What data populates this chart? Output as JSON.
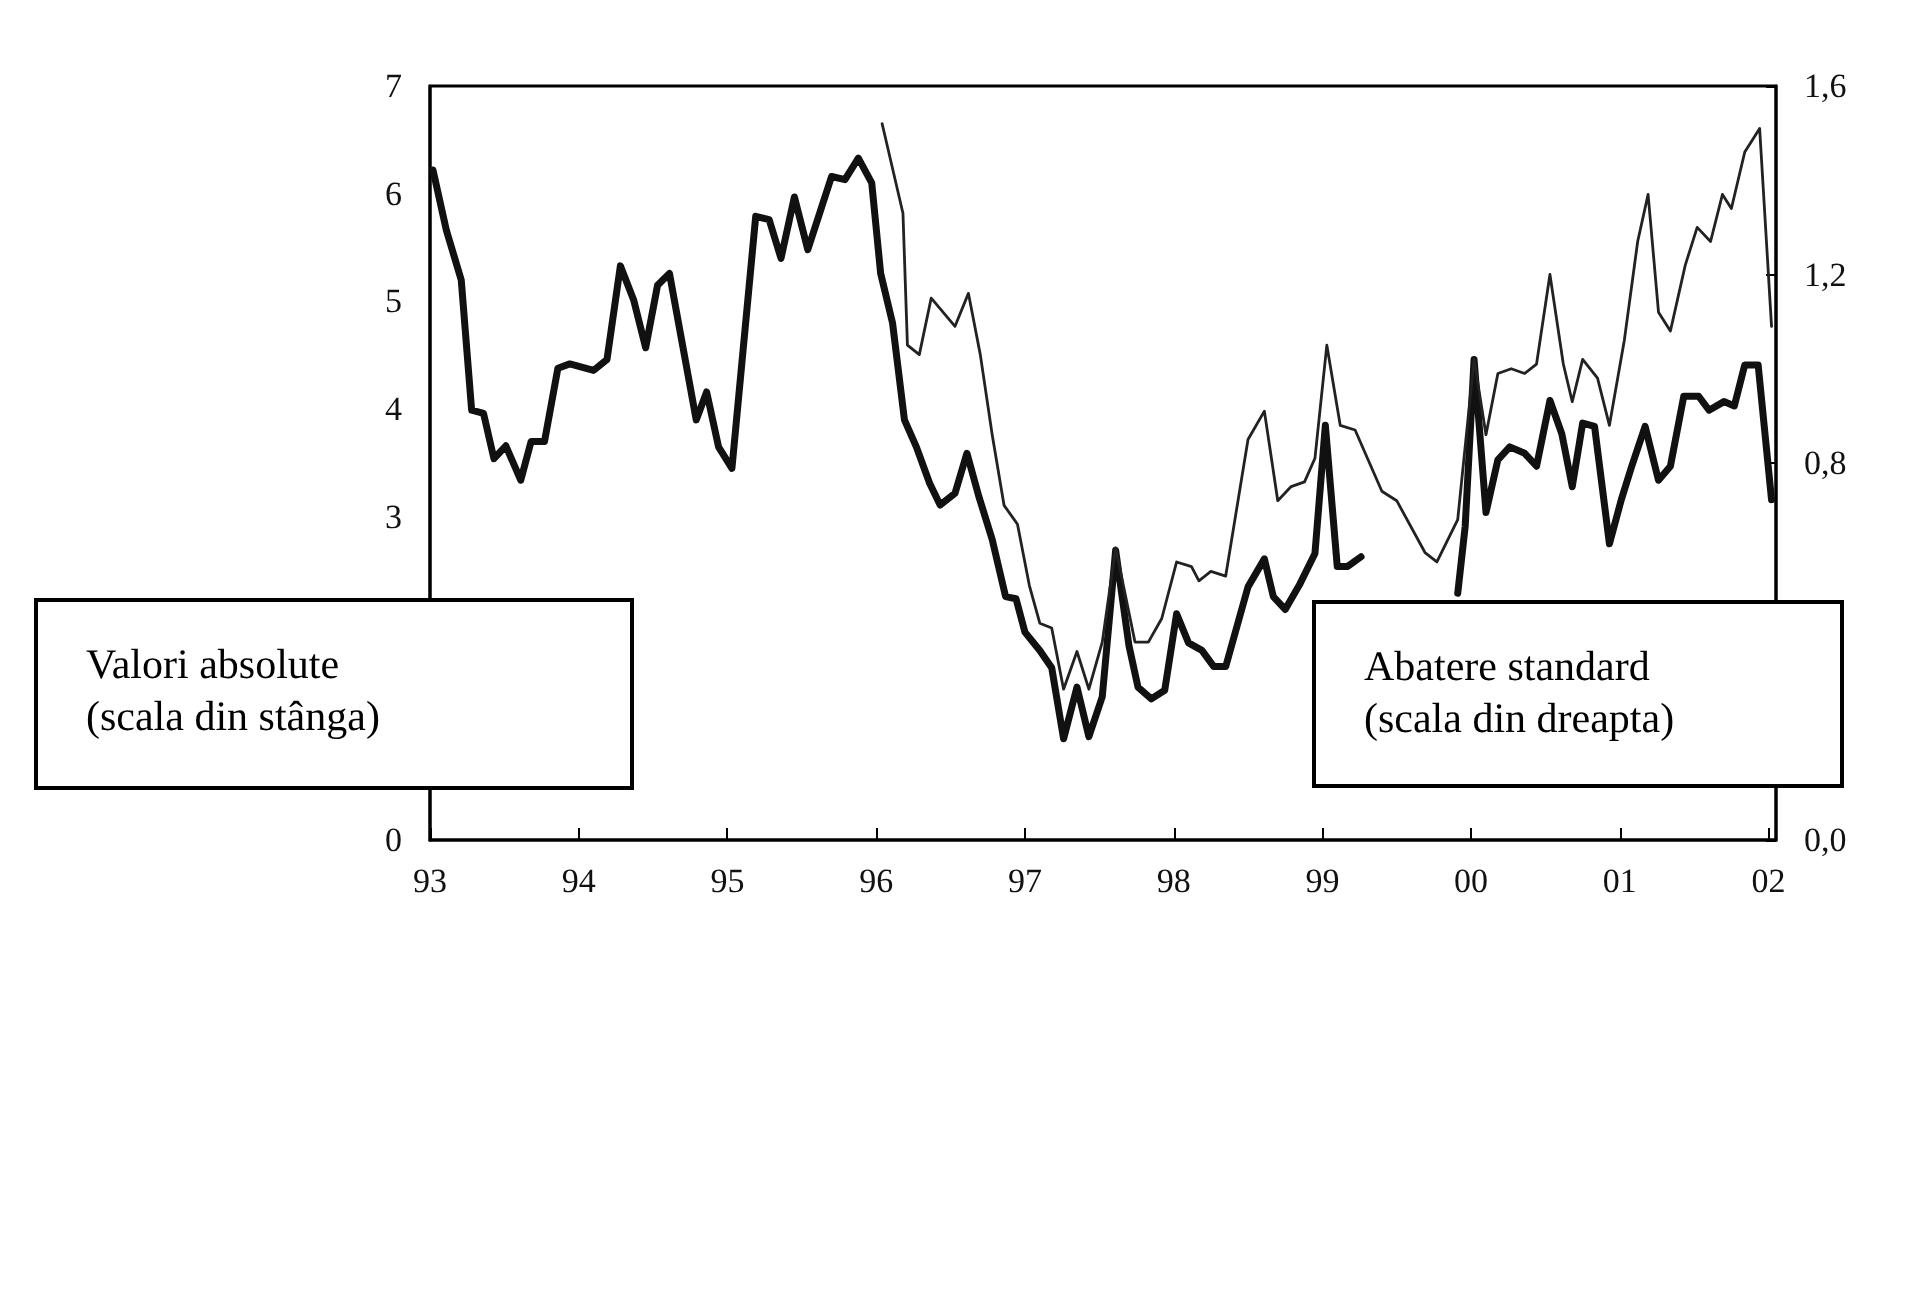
{
  "chart_data": {
    "type": "line",
    "annotations": [
      "Valori absolute\n(scala din stânga)",
      "Abatere standard\n(scala din dreapta)"
    ],
    "xlim": [
      1993,
      2002.05
    ],
    "xticks": [
      {
        "value": 1993,
        "label": "93"
      },
      {
        "value": 1994,
        "label": "94"
      },
      {
        "value": 1995,
        "label": "95"
      },
      {
        "value": 1996,
        "label": "96"
      },
      {
        "value": 1997,
        "label": "97"
      },
      {
        "value": 1998,
        "label": "98"
      },
      {
        "value": 1999,
        "label": "99"
      },
      {
        "value": 2000,
        "label": "00"
      },
      {
        "value": 2001,
        "label": "01"
      },
      {
        "value": 2002,
        "label": "02"
      }
    ],
    "ylim": [
      0,
      7
    ],
    "yticks": [
      0,
      3,
      4,
      5,
      6,
      7
    ],
    "y2lim": [
      0,
      1.6
    ],
    "y2ticks": [
      {
        "value": 0,
        "label": "0,0"
      },
      {
        "value": 0.8,
        "label": "0,8"
      },
      {
        "value": 1.2,
        "label": "1,2"
      },
      {
        "value": 1.6,
        "label": "1,6"
      }
    ],
    "grid": false,
    "marker": "none",
    "line_style": "solid",
    "series": [
      {
        "color": "#111111",
        "x": [
          1993.02,
          1993.11,
          1993.21,
          1993.28,
          1993.36,
          1993.43,
          1993.51,
          1993.61,
          1993.68,
          1993.77,
          1993.86,
          1993.94,
          1994.1,
          1994.19,
          1994.28,
          1994.37,
          1994.45,
          1994.53,
          1994.61,
          1994.7,
          1994.79,
          1994.86,
          1994.94,
          1995.03,
          1995.19,
          1995.28,
          1995.36,
          1995.45,
          1995.54,
          1995.62,
          1995.7,
          1995.79,
          1995.88,
          1995.97,
          1996.03,
          1996.11,
          1996.19,
          1996.27,
          1996.36,
          1996.43,
          1996.53,
          1996.61,
          1996.69,
          1996.78,
          1996.87,
          1996.94,
          1997.0,
          1997.1,
          1997.18,
          1997.26,
          1997.35,
          1997.43,
          1997.52,
          1997.61,
          1997.7,
          1997.76,
          1997.85,
          1997.94,
          1998.02,
          1998.1,
          1998.19,
          1998.27,
          1998.35,
          1998.5,
          1998.61,
          1998.67,
          1998.75,
          1998.85,
          1998.95,
          1999.02,
          1999.1,
          1999.17,
          1999.26,
          1999.6,
          1999.91,
          1999.96,
          2000.02,
          2000.1,
          2000.18,
          2000.26,
          2000.36,
          2000.44,
          2000.53,
          2000.61,
          2000.68,
          2000.75,
          2000.83,
          2000.93,
          2001.01,
          2001.08,
          2001.17,
          2001.26,
          2001.34,
          2001.43,
          2001.53,
          2001.6,
          2001.7,
          2001.77,
          2001.84,
          2001.93,
          2002.02
        ],
        "values": [
          6.22,
          5.66,
          5.2,
          3.99,
          3.96,
          3.54,
          3.66,
          3.34,
          3.7,
          3.7,
          4.38,
          4.42,
          4.36,
          4.46,
          5.33,
          5.01,
          4.57,
          5.15,
          5.26,
          4.58,
          3.9,
          4.16,
          3.65,
          3.45,
          5.79,
          5.76,
          5.4,
          5.97,
          5.48,
          5.82,
          6.16,
          6.13,
          6.33,
          6.1,
          5.26,
          4.8,
          3.9,
          3.65,
          3.31,
          3.11,
          3.22,
          3.59,
          3.19,
          2.79,
          2.26,
          2.24,
          1.93,
          1.76,
          1.6,
          0.94,
          1.42,
          0.96,
          1.33,
          2.69,
          1.8,
          1.42,
          1.31,
          1.39,
          2.1,
          1.83,
          1.76,
          1.61,
          1.61,
          2.35,
          2.61,
          2.26,
          2.14,
          2.38,
          2.66,
          3.85,
          2.54,
          2.54,
          2.63,
          null,
          2.29,
          2.91,
          4.46,
          3.04,
          3.53,
          3.65,
          3.59,
          3.47,
          4.08,
          3.77,
          3.28,
          3.87,
          3.84,
          2.75,
          3.16,
          3.47,
          3.84,
          3.34,
          3.47,
          4.12,
          4.12,
          3.99,
          4.07,
          4.03,
          4.41,
          4.41,
          3.16
        ]
      },
      {
        "color": "#222222",
        "axis": "y2",
        "x": [
          1996.04,
          1996.18,
          1996.21,
          1996.29,
          1996.37,
          1996.53,
          1996.62,
          1996.7,
          1996.78,
          1996.86,
          1996.95,
          1997.03,
          1997.1,
          1997.18,
          1997.26,
          1997.35,
          1997.43,
          1997.52,
          1997.61,
          1997.74,
          1997.83,
          1997.92,
          1998.02,
          1998.12,
          1998.17,
          1998.25,
          1998.35,
          1998.5,
          1998.61,
          1998.7,
          1998.79,
          1998.88,
          1998.95,
          1999.03,
          1999.12,
          1999.22,
          1999.4,
          1999.5,
          1999.69,
          1999.77,
          1999.91,
          2000.02,
          2000.1,
          2000.18,
          2000.27,
          2000.36,
          2000.44,
          2000.53,
          2000.62,
          2000.68,
          2000.75,
          2000.85,
          2000.93,
          2001.03,
          2001.12,
          2001.19,
          2001.26,
          2001.34,
          2001.44,
          2001.52,
          2001.61,
          2001.69,
          2001.75,
          2001.84,
          2001.94,
          2002.02
        ],
        "values": [
          1.52,
          1.33,
          1.05,
          1.03,
          1.15,
          1.09,
          1.16,
          1.03,
          0.86,
          0.71,
          0.67,
          0.54,
          0.46,
          0.45,
          0.32,
          0.4,
          0.32,
          0.42,
          0.62,
          0.42,
          0.42,
          0.47,
          0.59,
          0.58,
          0.55,
          0.57,
          0.56,
          0.85,
          0.91,
          0.72,
          0.75,
          0.76,
          0.81,
          1.05,
          0.88,
          0.87,
          0.74,
          0.72,
          0.61,
          0.59,
          0.68,
          1.02,
          0.86,
          0.99,
          1.0,
          0.99,
          1.01,
          1.2,
          1.01,
          0.93,
          1.02,
          0.98,
          0.88,
          1.06,
          1.27,
          1.37,
          1.12,
          1.08,
          1.22,
          1.3,
          1.27,
          1.37,
          1.34,
          1.46,
          1.51,
          1.09
        ]
      }
    ]
  }
}
